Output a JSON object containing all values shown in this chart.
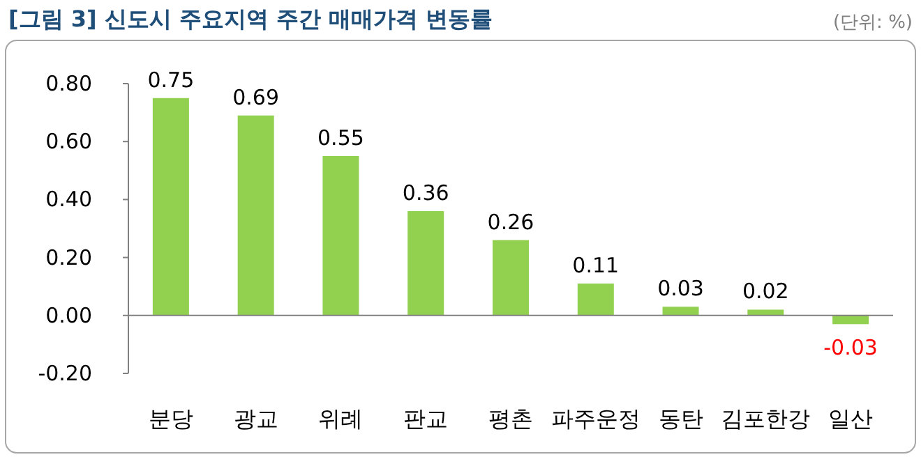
{
  "chart_data": {
    "type": "bar",
    "title": "[그림 3] 신도시 주요지역 주간 매매가격 변동률",
    "annotations": [
      "(단위: %)"
    ],
    "categories": [
      "분당",
      "광교",
      "위례",
      "판교",
      "평촌",
      "파주운정",
      "동탄",
      "김포한강",
      "일산"
    ],
    "values": [
      0.75,
      0.69,
      0.55,
      0.36,
      0.26,
      0.11,
      0.03,
      0.02,
      -0.03
    ],
    "color": "#92d050",
    "data_labels": true,
    "ylim": [
      -0.2,
      0.8
    ],
    "yticks": [
      {
        "value": -0.2,
        "label": "-0.20"
      },
      {
        "value": 0,
        "label": "0.00"
      },
      {
        "value": 0.2,
        "label": "0.20"
      },
      {
        "value": 0.4,
        "label": "0.40"
      },
      {
        "value": 0.6,
        "label": "0.60"
      },
      {
        "value": 0.8,
        "label": "0.80"
      }
    ]
  }
}
